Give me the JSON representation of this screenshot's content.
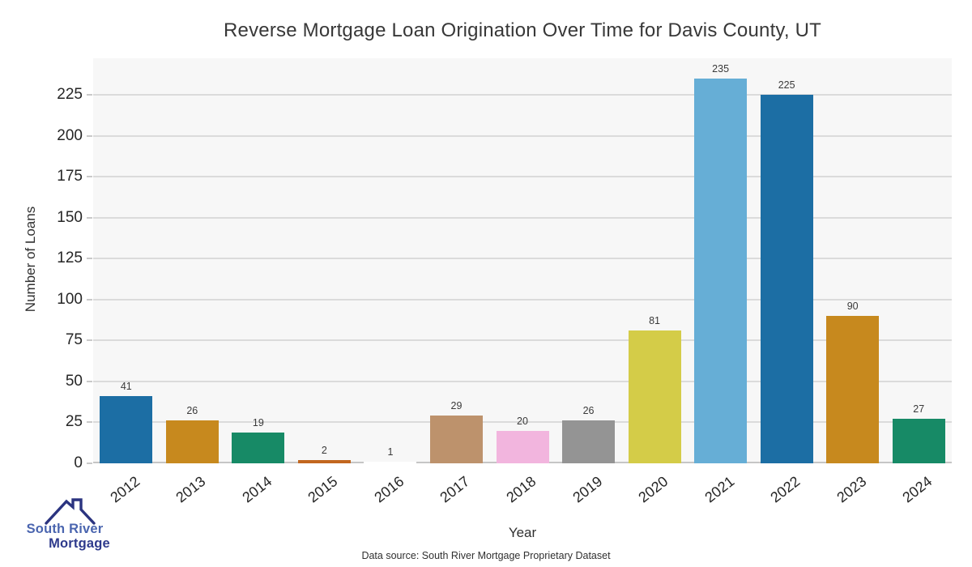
{
  "chart_data": {
    "type": "bar",
    "title": "Reverse Mortgage Loan Origination Over Time for Davis County, UT",
    "xlabel": "Year",
    "ylabel": "Number of Loans",
    "categories": [
      "2012",
      "2013",
      "2014",
      "2015",
      "2016",
      "2017",
      "2018",
      "2019",
      "2020",
      "2021",
      "2022",
      "2023",
      "2024"
    ],
    "values": [
      41,
      26,
      19,
      2,
      1,
      29,
      20,
      26,
      81,
      235,
      225,
      90,
      27
    ],
    "bar_colors": [
      "#1C6EA4",
      "#C7891E",
      "#178A66",
      "#C2661F",
      "#FFFFFF",
      "#BD926C",
      "#F2B5DE",
      "#949494",
      "#D4CC48",
      "#66AED6",
      "#1C6EA4",
      "#C7891E",
      "#178A66"
    ],
    "yticks": [
      0,
      25,
      50,
      75,
      100,
      125,
      150,
      175,
      200,
      225
    ],
    "ylim": [
      0,
      247
    ],
    "grid": "horizontal",
    "legend": "none",
    "value_labels": true,
    "plot_background": "#F7F7F7",
    "gridline_color": "#DBDBDB"
  },
  "footer": {
    "data_source": "Data source: South River Mortgage Proprietary Dataset"
  },
  "logo": {
    "line1": "South River",
    "line2": "Mortgage",
    "line1_color": "#4A65AF",
    "line2_color": "#2E3A8C",
    "roof_color": "#2B3480"
  }
}
